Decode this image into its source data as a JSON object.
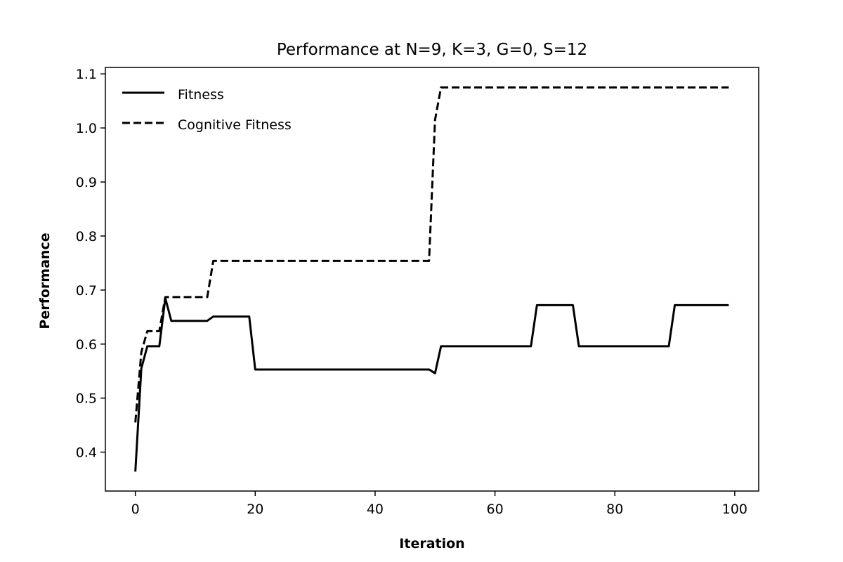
{
  "chart_data": {
    "type": "line",
    "title": "Performance at N=9, K=3, G=0, S=12",
    "xlabel": "Iteration",
    "ylabel": "Performance",
    "xlim": [
      -5,
      104
    ],
    "ylim": [
      0.328,
      1.112
    ],
    "x_ticks": [
      0,
      20,
      40,
      60,
      80,
      100
    ],
    "y_ticks": [
      0.4,
      0.5,
      0.6,
      0.7,
      0.8,
      0.9,
      1.0,
      1.1
    ],
    "x_tick_labels": [
      "0",
      "20",
      "40",
      "60",
      "80",
      "100"
    ],
    "y_tick_labels": [
      "0.4",
      "0.5",
      "0.6",
      "0.7",
      "0.8",
      "0.9",
      "1.0",
      "1.1"
    ],
    "grid": false,
    "legend_position": "upper-left",
    "series": [
      {
        "name": "Fitness",
        "style": "solid",
        "color": "#000000",
        "points": [
          [
            0,
            0.364
          ],
          [
            1,
            0.555
          ],
          [
            2,
            0.596
          ],
          [
            3,
            0.596
          ],
          [
            4,
            0.596
          ],
          [
            5,
            0.685
          ],
          [
            6,
            0.643
          ],
          [
            7,
            0.643
          ],
          [
            12,
            0.643
          ],
          [
            13,
            0.651
          ],
          [
            19,
            0.651
          ],
          [
            20,
            0.553
          ],
          [
            49,
            0.553
          ],
          [
            50,
            0.546
          ],
          [
            51,
            0.596
          ],
          [
            66,
            0.596
          ],
          [
            67,
            0.672
          ],
          [
            73,
            0.672
          ],
          [
            74,
            0.596
          ],
          [
            89,
            0.596
          ],
          [
            90,
            0.672
          ],
          [
            99,
            0.672
          ]
        ]
      },
      {
        "name": "Cognitive Fitness",
        "style": "dashed",
        "color": "#000000",
        "points": [
          [
            0,
            0.455
          ],
          [
            1,
            0.585
          ],
          [
            2,
            0.624
          ],
          [
            3,
            0.624
          ],
          [
            4,
            0.624
          ],
          [
            5,
            0.687
          ],
          [
            12,
            0.687
          ],
          [
            13,
            0.754
          ],
          [
            49,
            0.754
          ],
          [
            50,
            1.015
          ],
          [
            51,
            1.075
          ],
          [
            99,
            1.075
          ]
        ]
      }
    ]
  }
}
